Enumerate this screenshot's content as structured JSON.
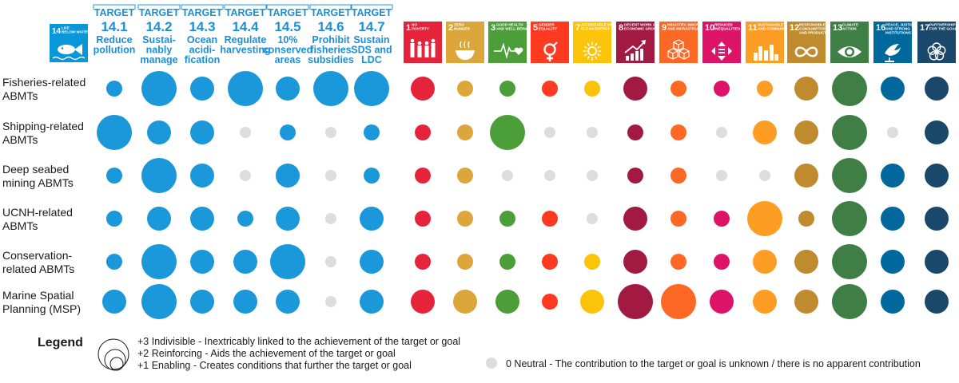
{
  "chart_data": {
    "type": "bubble-matrix",
    "rows": [
      "Fisheries-related ABMTs",
      "Shipping-related ABMTs",
      "Deep seabed mining ABMTs",
      "UCNH-related ABMTs",
      "Conservation-related ABMTs",
      "Marine Spatial Planning (MSP)"
    ],
    "row_label_lines": [
      [
        "Fisheries-related",
        "ABMTs"
      ],
      [
        "Shipping-related",
        "ABMTs"
      ],
      [
        "Deep seabed",
        "mining ABMTs"
      ],
      [
        "UCNH-related",
        "ABMTs"
      ],
      [
        "Conservation-",
        "related ABMTs"
      ],
      [
        "Marine Spatial",
        "Planning (MSP)"
      ]
    ],
    "goal14_tile": {
      "number": "14",
      "name_lines": [
        "LIFE",
        "BELOW WATER"
      ],
      "color": "#0a97d9"
    },
    "targets": [
      {
        "title": "TARGET",
        "number": "14.1",
        "desc": [
          "Reduce",
          "pollution"
        ]
      },
      {
        "title": "TARGET",
        "number": "14.2",
        "desc": [
          "Sustai-",
          "nably",
          "manage"
        ]
      },
      {
        "title": "TARGET",
        "number": "14.3",
        "desc": [
          "Ocean",
          "acidi-",
          "fication"
        ]
      },
      {
        "title": "TARGET",
        "number": "14.4",
        "desc": [
          "Regulate",
          "harvesting"
        ]
      },
      {
        "title": "TARGET",
        "number": "14.5",
        "desc": [
          "10%",
          "conserved",
          "areas"
        ]
      },
      {
        "title": "TARGET",
        "number": "14.6",
        "desc": [
          "Prohibit",
          "fisheries",
          "subsidies"
        ]
      },
      {
        "title": "TARGET",
        "number": "14.7",
        "desc": [
          "Sustain",
          "SDS and",
          "LDC"
        ]
      }
    ],
    "target_color": "#1a98d9",
    "target_values": [
      [
        1,
        3,
        2,
        3,
        2,
        3,
        3
      ],
      [
        3,
        2,
        2,
        0,
        1,
        0,
        1
      ],
      [
        1,
        3,
        2,
        0,
        2,
        0,
        1
      ],
      [
        1,
        2,
        2,
        1,
        2,
        0,
        2
      ],
      [
        1,
        3,
        2,
        2,
        3,
        0,
        2
      ],
      [
        2,
        3,
        2,
        2,
        2,
        0,
        2
      ]
    ],
    "goals": [
      {
        "number": "1",
        "name_lines": [
          "NO",
          "POVERTY"
        ],
        "color": "#e5243b",
        "icon": "family-icon"
      },
      {
        "number": "2",
        "name_lines": [
          "ZERO",
          "HUNGER"
        ],
        "color": "#dda63a",
        "icon": "bowl-icon"
      },
      {
        "number": "3",
        "name_lines": [
          "GOOD HEALTH",
          "AND WELL-BEING"
        ],
        "color": "#4c9f38",
        "icon": "heartbeat-icon"
      },
      {
        "number": "5",
        "name_lines": [
          "GENDER",
          "EQUALITY"
        ],
        "color": "#ff3a21",
        "icon": "gender-icon"
      },
      {
        "number": "7",
        "name_lines": [
          "AFFORDABLE AND",
          "CLEAN ENERGY"
        ],
        "color": "#fcc30b",
        "icon": "sun-icon"
      },
      {
        "number": "8",
        "name_lines": [
          "DECENT WORK AND",
          "ECONOMIC GROWTH"
        ],
        "color": "#a21942",
        "icon": "growth-chart-icon"
      },
      {
        "number": "9",
        "name_lines": [
          "INDUSTRY, INNOVATION",
          "AND INFRASTRUCTURE"
        ],
        "color": "#fd6925",
        "icon": "cubes-icon"
      },
      {
        "number": "10",
        "name_lines": [
          "REDUCED",
          "INEQUALITIES"
        ],
        "color": "#dd1367",
        "icon": "arrows-icon"
      },
      {
        "number": "11",
        "name_lines": [
          "SUSTAINABLE CITIES",
          "AND COMMUNITIES"
        ],
        "color": "#fd9d24",
        "icon": "city-icon"
      },
      {
        "number": "12",
        "name_lines": [
          "RESPONSIBLE",
          "CONSUMPTION",
          "AND PRODUCTION"
        ],
        "color": "#bf8b2e",
        "icon": "infinity-icon"
      },
      {
        "number": "13",
        "name_lines": [
          "CLIMATE",
          "ACTION"
        ],
        "color": "#3f7e44",
        "icon": "eye-globe-icon"
      },
      {
        "number": "16",
        "name_lines": [
          "PEACE, JUSTICE",
          "AND STRONG",
          "INSTITUTIONS"
        ],
        "color": "#00689d",
        "icon": "dove-icon"
      },
      {
        "number": "17",
        "name_lines": [
          "PARTNERSHIPS",
          "FOR THE GOALS"
        ],
        "color": "#19486a",
        "icon": "flower-icon"
      }
    ],
    "goal_values": [
      [
        2,
        1,
        1,
        1,
        1,
        2,
        1,
        1,
        1,
        2,
        3,
        2,
        2
      ],
      [
        1,
        1,
        3,
        0,
        0,
        1,
        1,
        0,
        2,
        2,
        3,
        0,
        2
      ],
      [
        1,
        1,
        0,
        0,
        0,
        1,
        1,
        0,
        0,
        2,
        3,
        2,
        2
      ],
      [
        1,
        1,
        1,
        1,
        0,
        2,
        1,
        1,
        3,
        1,
        3,
        2,
        2
      ],
      [
        1,
        1,
        1,
        1,
        1,
        2,
        1,
        1,
        2,
        2,
        3,
        2,
        2
      ],
      [
        2,
        2,
        2,
        1,
        2,
        3,
        3,
        2,
        2,
        2,
        3,
        2,
        2
      ]
    ],
    "neutral_color": "#dddddd",
    "scale": {
      "3": "Indivisible",
      "2": "Reinforcing",
      "1": "Enabling",
      "0": "Neutral"
    },
    "legend": {
      "title": "Legend",
      "items": [
        "+3 Indivisible - Inextricably linked to the achievement of the target or goal",
        "+2 Reinforcing - Aids the achievement of the target or goal",
        "+1 Enabling - Creates conditions that further the target or goal"
      ],
      "neutral": "0 Neutral - The contribution to the target or goal is unknown / there is no apparent contribution"
    }
  }
}
